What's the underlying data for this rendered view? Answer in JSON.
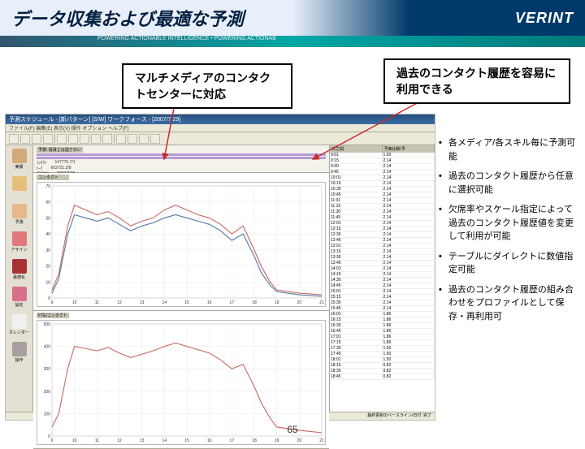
{
  "header": {
    "title": "データ収集および最適な予測",
    "logo": "VERINT",
    "subbar": "POWERING ACTIONABLE INTELLIGENCE • POWERING ACTIONAB"
  },
  "callouts": {
    "left": "マルチメディアのコンタクトセンターに対応",
    "right": "過去のコンタクト履歴を容易に利用できる"
  },
  "app": {
    "titlebar": "予測スケジュール - [新パターン] [S/W] ワークフォース - [2007/7/29]",
    "menubar": "ファイル(F)  編集(E)  表示(V)  操作  オプション  ヘルプ(F)",
    "statusbar": "最終更新のベースライン/日付: 完了"
  },
  "sidebar": {
    "items": [
      {
        "label": "実績",
        "color": "#d4a97a"
      },
      {
        "label": "",
        "color": "#e6c07a"
      },
      {
        "label": "予測",
        "color": "#e6b88c"
      },
      {
        "label": "アサイン",
        "color": "#e07878"
      },
      {
        "label": "最適化",
        "color": "#a83232"
      },
      {
        "label": "設定",
        "color": "#d8708c"
      },
      {
        "label": "カレンダー",
        "color": "#f0f0f0"
      },
      {
        "label": "操作",
        "color": "#a8a0a0"
      }
    ]
  },
  "params": {
    "title": "予測: 役員とは話さない",
    "rows": [
      [
        "ｺﾝﾀｸﾄ",
        "147775.7/1",
        "",
        ""
      ],
      [
        "ﾄｰｸ",
        "602721.2/8",
        "",
        ""
      ],
      [
        "保留率",
        "2007/7/15",
        "",
        ""
      ],
      [
        "処理率",
        "2007/7/22",
        "",
        ""
      ]
    ]
  },
  "charts": {
    "top": {
      "title": "コンタクト",
      "xlim": [
        9,
        21
      ],
      "ylim": [
        0,
        70
      ],
      "xticks": [
        9,
        10,
        11,
        12,
        13,
        14,
        15,
        16,
        17,
        18,
        19,
        20,
        21
      ],
      "yticks": [
        0,
        10,
        20,
        30,
        40,
        50,
        60,
        70
      ],
      "series": [
        {
          "color": "#c86860",
          "width": 1.1,
          "points": [
            [
              9,
              5
            ],
            [
              9.3,
              15
            ],
            [
              9.7,
              45
            ],
            [
              10,
              58
            ],
            [
              10.5,
              55
            ],
            [
              11,
              52
            ],
            [
              11.5,
              54
            ],
            [
              12,
              50
            ],
            [
              12.5,
              45
            ],
            [
              13,
              48
            ],
            [
              13.5,
              50
            ],
            [
              14,
              55
            ],
            [
              14.5,
              58
            ],
            [
              15,
              55
            ],
            [
              15.5,
              52
            ],
            [
              16,
              50
            ],
            [
              16.5,
              46
            ],
            [
              17,
              40
            ],
            [
              17.5,
              45
            ],
            [
              18,
              30
            ],
            [
              18.3,
              20
            ],
            [
              18.7,
              10
            ],
            [
              19,
              5
            ],
            [
              20,
              3
            ],
            [
              21,
              2
            ]
          ]
        },
        {
          "color": "#5078a8",
          "width": 1.1,
          "points": [
            [
              9,
              3
            ],
            [
              9.3,
              12
            ],
            [
              9.7,
              40
            ],
            [
              10,
              52
            ],
            [
              10.5,
              50
            ],
            [
              11,
              48
            ],
            [
              11.5,
              50
            ],
            [
              12,
              46
            ],
            [
              12.5,
              42
            ],
            [
              13,
              45
            ],
            [
              13.5,
              47
            ],
            [
              14,
              50
            ],
            [
              14.5,
              52
            ],
            [
              15,
              50
            ],
            [
              15.5,
              48
            ],
            [
              16,
              46
            ],
            [
              16.5,
              42
            ],
            [
              17,
              36
            ],
            [
              17.5,
              40
            ],
            [
              18,
              26
            ],
            [
              18.3,
              16
            ],
            [
              18.7,
              8
            ],
            [
              19,
              4
            ],
            [
              20,
              2
            ],
            [
              21,
              1
            ]
          ]
        }
      ],
      "grid": "#e8e8e8",
      "bg": "#ffffff"
    },
    "bottom": {
      "title": "FTE/コンタクト",
      "xlim": [
        9,
        21
      ],
      "ylim": [
        0,
        500
      ],
      "xticks": [
        9,
        10,
        11,
        12,
        13,
        14,
        15,
        16,
        17,
        18,
        19,
        20,
        21
      ],
      "yticks": [
        0,
        100,
        200,
        300,
        400,
        500
      ],
      "series": [
        {
          "color": "#c86860",
          "width": 1.1,
          "points": [
            [
              9,
              40
            ],
            [
              9.3,
              100
            ],
            [
              9.7,
              300
            ],
            [
              10,
              400
            ],
            [
              10.5,
              390
            ],
            [
              11,
              380
            ],
            [
              11.5,
              395
            ],
            [
              12,
              370
            ],
            [
              12.5,
              350
            ],
            [
              13,
              365
            ],
            [
              13.5,
              380
            ],
            [
              14,
              400
            ],
            [
              14.5,
              415
            ],
            [
              15,
              400
            ],
            [
              15.5,
              385
            ],
            [
              16,
              370
            ],
            [
              16.5,
              340
            ],
            [
              17,
              300
            ],
            [
              17.5,
              320
            ],
            [
              18,
              220
            ],
            [
              18.3,
              150
            ],
            [
              18.7,
              80
            ],
            [
              19,
              40
            ],
            [
              20,
              25
            ],
            [
              21,
              15
            ]
          ]
        }
      ],
      "grid": "#e8e8e8",
      "bg": "#ffffff"
    }
  },
  "tables": {
    "headers": [
      "日之間",
      "予実比較/予"
    ],
    "rows": [
      [
        "9:01",
        "1.00"
      ],
      [
        "9:15",
        "2.14"
      ],
      [
        "9:30",
        "2.14"
      ],
      [
        "9:45",
        "2.14"
      ],
      [
        "10:01",
        "2.14"
      ],
      [
        "10:15",
        "2.14"
      ],
      [
        "10:30",
        "2.14"
      ],
      [
        "10:45",
        "2.14"
      ],
      [
        "11:01",
        "2.14"
      ],
      [
        "11:15",
        "2.14"
      ],
      [
        "11:30",
        "2.14"
      ],
      [
        "11:45",
        "2.14"
      ],
      [
        "12:01",
        "2.14"
      ],
      [
        "12:15",
        "2.14"
      ],
      [
        "12:30",
        "2.14"
      ],
      [
        "12:45",
        "2.14"
      ],
      [
        "13:01",
        "2.14"
      ],
      [
        "13:15",
        "2.14"
      ],
      [
        "13:30",
        "2.14"
      ],
      [
        "13:45",
        "2.14"
      ],
      [
        "14:01",
        "2.14"
      ],
      [
        "14:15",
        "2.14"
      ],
      [
        "14:30",
        "2.14"
      ],
      [
        "14:45",
        "2.14"
      ],
      [
        "15:01",
        "2.14"
      ],
      [
        "15:15",
        "2.14"
      ],
      [
        "15:30",
        "2.14"
      ],
      [
        "15:45",
        "2.14"
      ],
      [
        "16:01",
        "1.86"
      ],
      [
        "16:15",
        "1.86"
      ],
      [
        "16:30",
        "1.86"
      ],
      [
        "16:45",
        "1.86"
      ],
      [
        "17:01",
        "1.86"
      ],
      [
        "17:15",
        "1.86"
      ],
      [
        "17:30",
        "1.50"
      ],
      [
        "17:45",
        "1.50"
      ],
      [
        "18:01",
        "1.50"
      ],
      [
        "18:15",
        "0.82"
      ],
      [
        "18:30",
        "0.82"
      ],
      [
        "18:45",
        "0.82"
      ]
    ]
  },
  "bullets": [
    "各メディア/各スキル毎に予測可能",
    "過去のコンタクト履歴から任意に選択可能",
    "欠席率やスケール指定によって過去のコンタクト履歴値を変更して利用が可能",
    "テーブルにダイレクトに数値指定可能",
    "過去のコンタクト履歴の組み合わせをプロファイルとして保存・再利用可"
  ],
  "page": "65"
}
